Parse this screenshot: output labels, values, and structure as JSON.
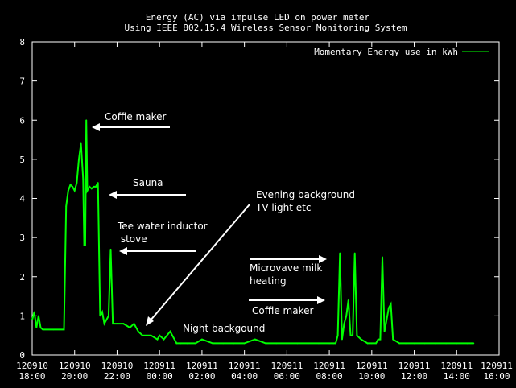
{
  "chart_data": {
    "type": "line",
    "title": "Energy (AC) via impulse LED on power meter",
    "subtitle": "Using IEEE 802.15.4 Wireless Sensor Monitoring System",
    "xlabel": "",
    "ylabel": "",
    "ylim": [
      0,
      8
    ],
    "yticks": [
      "0",
      "1",
      "2",
      "3",
      "4",
      "5",
      "6",
      "7",
      "8"
    ],
    "xticks": [
      {
        "line1": "120910",
        "line2": "18:00",
        "h": 18
      },
      {
        "line1": "120910",
        "line2": "20:00",
        "h": 20
      },
      {
        "line1": "120910",
        "line2": "22:00",
        "h": 22
      },
      {
        "line1": "120911",
        "line2": "00:00",
        "h": 24
      },
      {
        "line1": "120911",
        "line2": "02:00",
        "h": 26
      },
      {
        "line1": "120911",
        "line2": "04:00",
        "h": 28
      },
      {
        "line1": "120911",
        "line2": "06:00",
        "h": 30
      },
      {
        "line1": "120911",
        "line2": "08:00",
        "h": 32
      },
      {
        "line1": "120911",
        "line2": "10:00",
        "h": 34
      },
      {
        "line1": "120911",
        "line2": "12:00",
        "h": 36
      },
      {
        "line1": "120911",
        "line2": "14:00",
        "h": 38
      },
      {
        "line1": "120911",
        "line2": "16:00",
        "h": 40
      }
    ],
    "xlim_hours": [
      18,
      40
    ],
    "grid": false,
    "legend_position": "top-right",
    "series": [
      {
        "name": "Momentary Energy use in kWh",
        "color": "#00ff00",
        "x": [
          18.0,
          18.1,
          18.2,
          18.3,
          18.4,
          18.5,
          19.0,
          19.5,
          19.6,
          19.7,
          19.8,
          19.9,
          20.0,
          20.1,
          20.2,
          20.3,
          20.4,
          20.45,
          20.5,
          20.55,
          20.6,
          20.7,
          20.8,
          20.9,
          21.0,
          21.1,
          21.2,
          21.3,
          21.4,
          21.5,
          21.6,
          21.7,
          21.8,
          21.9,
          22.0,
          22.3,
          22.6,
          22.8,
          23.0,
          23.2,
          23.4,
          23.6,
          23.9,
          24.0,
          24.2,
          24.5,
          24.8,
          25.0,
          25.3,
          25.7,
          26.0,
          26.5,
          27.0,
          27.5,
          28.0,
          28.5,
          29.0,
          29.5,
          30.0,
          30.5,
          31.0,
          31.5,
          32.0,
          32.2,
          32.3,
          32.4,
          32.5,
          32.6,
          32.7,
          32.8,
          32.9,
          33.0,
          33.1,
          33.2,
          33.3,
          33.5,
          33.8,
          34.0,
          34.2,
          34.3,
          34.4,
          34.5,
          34.6,
          34.7,
          34.8,
          34.9,
          35.0,
          35.3,
          35.6,
          36.0,
          36.5,
          37.0,
          37.5,
          38.0,
          38.5,
          38.8
        ],
        "values": [
          0.9,
          1.1,
          0.7,
          1.0,
          0.7,
          0.65,
          0.65,
          0.65,
          3.8,
          4.2,
          4.35,
          4.3,
          4.2,
          4.4,
          5.0,
          5.4,
          4.5,
          2.8,
          2.8,
          6.0,
          4.2,
          4.3,
          4.25,
          4.3,
          4.3,
          4.4,
          1.0,
          1.1,
          0.8,
          0.9,
          1.0,
          2.7,
          0.8,
          0.8,
          0.8,
          0.8,
          0.7,
          0.8,
          0.6,
          0.5,
          0.5,
          0.5,
          0.4,
          0.5,
          0.4,
          0.6,
          0.3,
          0.3,
          0.3,
          0.3,
          0.4,
          0.3,
          0.3,
          0.3,
          0.3,
          0.4,
          0.3,
          0.3,
          0.3,
          0.3,
          0.3,
          0.3,
          0.3,
          0.3,
          0.3,
          0.5,
          2.6,
          0.4,
          0.8,
          1.0,
          1.4,
          0.5,
          0.5,
          2.6,
          0.5,
          0.4,
          0.3,
          0.3,
          0.3,
          0.4,
          0.4,
          2.5,
          0.6,
          0.9,
          1.2,
          1.3,
          0.4,
          0.3,
          0.3,
          0.3,
          0.3,
          0.3,
          0.3,
          0.3,
          0.3,
          0.3
        ]
      }
    ],
    "annotations": [
      {
        "id": "coffie-maker-1",
        "lines": [
          "Coffie maker"
        ]
      },
      {
        "id": "sauna",
        "lines": [
          "Sauna"
        ]
      },
      {
        "id": "tee-water",
        "lines": [
          "Tee water inductor",
          " stove"
        ]
      },
      {
        "id": "evening-background",
        "lines": [
          "Evening background",
          "TV light etc"
        ]
      },
      {
        "id": "night-background",
        "lines": [
          "Night backgound"
        ]
      },
      {
        "id": "microvave-milk",
        "lines": [
          "Microvave milk",
          "heating"
        ]
      },
      {
        "id": "coffie-maker-2",
        "lines": [
          "Coffie maker"
        ]
      }
    ]
  }
}
